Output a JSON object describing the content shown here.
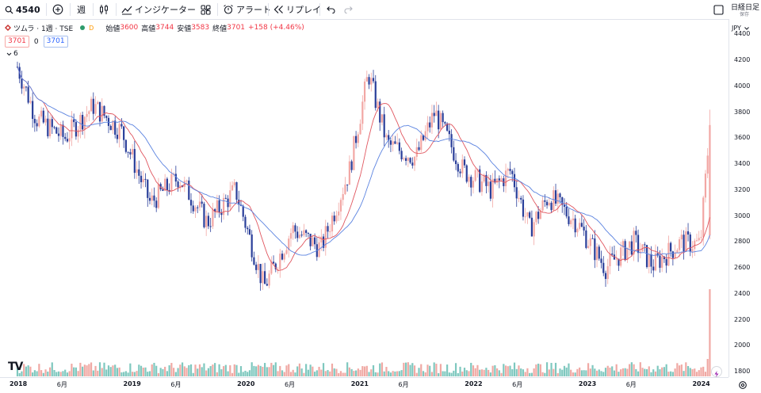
{
  "toolbar": {
    "symbol": "4540",
    "interval": "週",
    "indicators_label": "インジケーター",
    "alert_label": "アラート",
    "replay_label": "リプレイ",
    "right_title": "日経日足",
    "save_label": "保存"
  },
  "legend": {
    "title": "ツムラ · 1週 · TSE",
    "badge": "D",
    "open_label": "始値",
    "open": "3600",
    "high_label": "高値",
    "high": "3744",
    "low_label": "安値",
    "low": "3583",
    "close_label": "終値",
    "close": "3701",
    "change": "+158 (+4.46%)",
    "ma1": "3701",
    "ma_sep": "0",
    "ma2": "3701",
    "collapse_count": "6"
  },
  "currency": "JPY",
  "colors": {
    "up": "#f2a7a4",
    "down": "#2a3f9a",
    "ma_fast": "#e0565f",
    "ma_slow": "#5b83e0",
    "vol_up": "#f0a9a4",
    "vol_down": "#7fc8bf"
  },
  "chart_data": {
    "type": "candlestick",
    "interval": "1W",
    "ylim": [
      1800,
      4500
    ],
    "y_ticks": [
      "4400",
      "4200",
      "4000",
      "3800",
      "3600",
      "3400",
      "3200",
      "3000",
      "2800",
      "2600",
      "2400",
      "2200",
      "2000",
      "1800"
    ],
    "x_ticks": [
      "2018",
      "6月",
      "2019",
      "6月",
      "2020",
      "6月",
      "2021",
      "6月",
      "2022",
      "6月",
      "2023",
      "6月",
      "2024"
    ],
    "price_path": [
      {
        "x": "2018-01",
        "y": 4150
      },
      {
        "x": "2018-03",
        "y": 3750
      },
      {
        "x": "2018-06",
        "y": 3600
      },
      {
        "x": "2018-09",
        "y": 3850
      },
      {
        "x": "2018-12",
        "y": 3650
      },
      {
        "x": "2019-03",
        "y": 3100
      },
      {
        "x": "2019-06",
        "y": 3300
      },
      {
        "x": "2019-09",
        "y": 2950
      },
      {
        "x": "2019-12",
        "y": 3200
      },
      {
        "x": "2020-03",
        "y": 2450
      },
      {
        "x": "2020-06",
        "y": 2900
      },
      {
        "x": "2020-09",
        "y": 2750
      },
      {
        "x": "2020-12",
        "y": 3350
      },
      {
        "x": "2021-02",
        "y": 4100
      },
      {
        "x": "2021-04",
        "y": 3550
      },
      {
        "x": "2021-07",
        "y": 3450
      },
      {
        "x": "2021-09",
        "y": 3800
      },
      {
        "x": "2021-12",
        "y": 3350
      },
      {
        "x": "2022-03",
        "y": 3200
      },
      {
        "x": "2022-05",
        "y": 3350
      },
      {
        "x": "2022-07",
        "y": 2900
      },
      {
        "x": "2022-09",
        "y": 3150
      },
      {
        "x": "2022-12",
        "y": 2950
      },
      {
        "x": "2023-03",
        "y": 2600
      },
      {
        "x": "2023-06",
        "y": 2800
      },
      {
        "x": "2023-08",
        "y": 2620
      },
      {
        "x": "2023-11",
        "y": 2800
      },
      {
        "x": "2024-01",
        "y": 2780
      },
      {
        "x": "2024-02",
        "y": 3700
      }
    ]
  }
}
